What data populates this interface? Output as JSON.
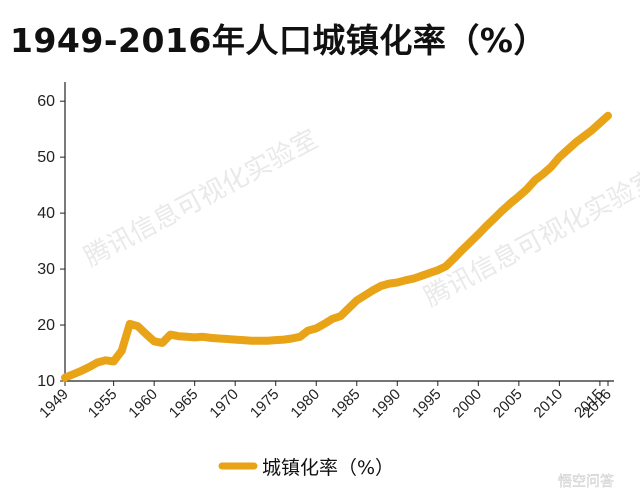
{
  "title": "1949-2016年人口城镇化率（%）",
  "watermark_text": "腾讯信息可视化实验室",
  "corner_brand": "悟空问答",
  "colors": {
    "line": "#E8A317",
    "axis": "#222222",
    "text": "#111111"
  },
  "chart_data": {
    "type": "line",
    "title": "1949-2016年人口城镇化率（%）",
    "xlabel": "",
    "ylabel": "",
    "ylim": [
      10,
      62
    ],
    "xlim": [
      1949,
      2016
    ],
    "x_ticks": [
      1949,
      1955,
      1960,
      1965,
      1970,
      1975,
      1980,
      1985,
      1990,
      1995,
      2000,
      2005,
      2010,
      2015,
      2016
    ],
    "y_ticks": [
      10,
      20,
      30,
      40,
      50,
      60
    ],
    "legend_position": "bottom-center",
    "grid": false,
    "series": [
      {
        "name": "城镇化率（%）",
        "x": [
          1949,
          1950,
          1951,
          1952,
          1953,
          1954,
          1955,
          1956,
          1957,
          1958,
          1959,
          1960,
          1961,
          1962,
          1963,
          1964,
          1965,
          1966,
          1967,
          1968,
          1969,
          1970,
          1971,
          1972,
          1973,
          1974,
          1975,
          1976,
          1977,
          1978,
          1979,
          1980,
          1981,
          1982,
          1983,
          1984,
          1985,
          1986,
          1987,
          1988,
          1989,
          1990,
          1991,
          1992,
          1993,
          1994,
          1995,
          1996,
          1997,
          1998,
          1999,
          2000,
          2001,
          2002,
          2003,
          2004,
          2005,
          2006,
          2007,
          2008,
          2009,
          2010,
          2011,
          2012,
          2013,
          2014,
          2015,
          2016
        ],
        "values": [
          10.6,
          11.2,
          11.8,
          12.5,
          13.3,
          13.7,
          13.5,
          15.4,
          20.2,
          19.8,
          18.4,
          17.1,
          16.8,
          18.3,
          18.0,
          17.9,
          17.8,
          17.9,
          17.7,
          17.6,
          17.5,
          17.4,
          17.3,
          17.2,
          17.2,
          17.2,
          17.3,
          17.4,
          17.6,
          17.9,
          19.0,
          19.4,
          20.2,
          21.1,
          21.6,
          23.0,
          24.4,
          25.3,
          26.2,
          27.0,
          27.4,
          27.6,
          28.0,
          28.3,
          28.8,
          29.3,
          29.8,
          30.5,
          31.9,
          33.4,
          34.8,
          36.2,
          37.7,
          39.1,
          40.5,
          41.8,
          43.0,
          44.3,
          45.9,
          47.0,
          48.3,
          50.0,
          51.3,
          52.6,
          53.7,
          54.8,
          56.1,
          57.4
        ]
      }
    ]
  }
}
